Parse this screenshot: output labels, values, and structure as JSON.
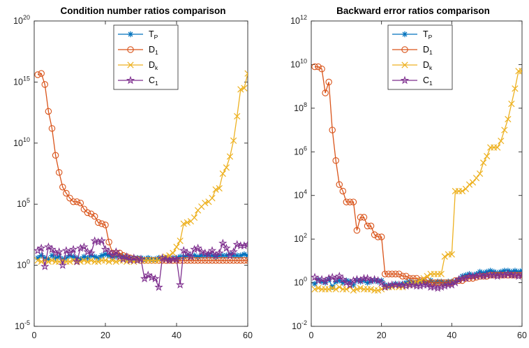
{
  "chart_data": [
    {
      "type": "line",
      "title": "Condition number ratios comparison",
      "xlabel": "",
      "ylabel": "",
      "yscale": "log",
      "xlim": [
        0,
        60
      ],
      "ylim_exp": [
        -5,
        20
      ],
      "x_ticks": [
        "0",
        "20",
        "40",
        "60"
      ],
      "y_tick_base": "10",
      "y_tick_exps": [
        "-5",
        "0",
        "5",
        "10",
        "15",
        "20"
      ],
      "grid": false,
      "legend_position": "top-center",
      "series": [
        {
          "name": "T_P",
          "name_main": "T",
          "name_sub": "P",
          "color": "#0072bd",
          "marker": "asterisk",
          "x": [
            1,
            2,
            3,
            4,
            5,
            6,
            7,
            8,
            9,
            10,
            11,
            12,
            13,
            14,
            15,
            16,
            17,
            18,
            19,
            20,
            21,
            22,
            23,
            24,
            25,
            26,
            27,
            28,
            29,
            30,
            31,
            32,
            33,
            34,
            35,
            36,
            37,
            38,
            39,
            40,
            41,
            42,
            43,
            44,
            45,
            46,
            47,
            48,
            49,
            50,
            51,
            52,
            53,
            54,
            55,
            56,
            57,
            58,
            59,
            60
          ],
          "y_exp": [
            0.6,
            0.8,
            0.6,
            0.5,
            0.8,
            0.6,
            0.7,
            0.5,
            0.6,
            0.8,
            0.7,
            0.6,
            0.5,
            0.7,
            0.6,
            0.8,
            0.7,
            0.6,
            0.8,
            0.9,
            0.8,
            0.7,
            0.7,
            0.8,
            0.7,
            0.6,
            0.6,
            0.5,
            0.6,
            0.6,
            0.5,
            0.6,
            0.5,
            0.5,
            0.6,
            0.6,
            0.6,
            0.5,
            0.6,
            0.6,
            0.7,
            0.7,
            0.8,
            0.8,
            0.8,
            0.7,
            0.8,
            0.8,
            0.8,
            0.8,
            0.7,
            0.8,
            0.8,
            0.8,
            0.9,
            0.8,
            0.8,
            0.8,
            0.9,
            0.8
          ]
        },
        {
          "name": "D_1",
          "name_main": "D",
          "name_sub": "1",
          "color": "#d95319",
          "marker": "circle",
          "x": [
            1,
            2,
            3,
            4,
            5,
            6,
            7,
            8,
            9,
            10,
            11,
            12,
            13,
            14,
            15,
            16,
            17,
            18,
            19,
            20,
            21,
            22,
            23,
            24,
            25,
            26,
            27,
            28,
            29,
            30,
            31,
            32,
            33,
            34,
            35,
            36,
            37,
            38,
            39,
            40,
            41,
            42,
            43,
            44,
            45,
            46,
            47,
            48,
            49,
            50,
            51,
            52,
            53,
            54,
            55,
            56,
            57,
            58,
            59,
            60
          ],
          "y_exp": [
            15.6,
            15.7,
            14.8,
            12.6,
            11.2,
            9.0,
            7.6,
            6.4,
            5.9,
            5.5,
            5.2,
            5.2,
            5.1,
            4.6,
            4.3,
            4.2,
            4.0,
            3.5,
            3.4,
            3.3,
            1.9,
            1.0,
            1.0,
            1.0,
            0.8,
            0.7,
            0.6,
            0.5,
            0.5,
            0.4,
            0.4,
            0.4,
            0.4,
            0.4,
            0.4,
            0.4,
            0.4,
            0.4,
            0.4,
            0.4,
            0.4,
            0.4,
            0.4,
            0.4,
            0.4,
            0.4,
            0.4,
            0.4,
            0.4,
            0.4,
            0.4,
            0.4,
            0.4,
            0.4,
            0.4,
            0.4,
            0.4,
            0.4,
            0.4,
            0.4
          ]
        },
        {
          "name": "D_k",
          "name_main": "D",
          "name_sub": "k",
          "color": "#edb120",
          "marker": "x",
          "x": [
            1,
            2,
            3,
            4,
            5,
            6,
            7,
            8,
            9,
            10,
            11,
            12,
            13,
            14,
            15,
            16,
            17,
            18,
            19,
            20,
            21,
            22,
            23,
            24,
            25,
            26,
            27,
            28,
            29,
            30,
            31,
            32,
            33,
            34,
            35,
            36,
            37,
            38,
            39,
            40,
            41,
            42,
            43,
            44,
            45,
            46,
            47,
            48,
            49,
            50,
            51,
            52,
            53,
            54,
            55,
            56,
            57,
            58,
            59,
            60
          ],
          "y_exp": [
            0.4,
            0.3,
            0.4,
            0.3,
            0.4,
            0.3,
            0.3,
            0.4,
            0.3,
            0.3,
            0.4,
            0.3,
            0.3,
            0.4,
            0.3,
            0.4,
            0.3,
            0.3,
            0.4,
            0.4,
            0.3,
            0.4,
            0.3,
            0.4,
            0.4,
            0.3,
            0.4,
            0.3,
            0.4,
            0.4,
            0.4,
            0.4,
            0.4,
            0.4,
            0.4,
            0.6,
            0.7,
            0.8,
            1.0,
            1.5,
            2.0,
            3.4,
            3.5,
            3.6,
            3.9,
            4.5,
            4.8,
            5.1,
            5.2,
            5.5,
            6.2,
            6.3,
            7.5,
            8.0,
            8.9,
            10.2,
            12.2,
            14.4,
            14.5,
            15.7
          ]
        },
        {
          "name": "C_1",
          "name_main": "C",
          "name_sub": "1",
          "color": "#7e2f8e",
          "marker": "star",
          "x": [
            1,
            2,
            3,
            4,
            5,
            6,
            7,
            8,
            9,
            10,
            11,
            12,
            13,
            14,
            15,
            16,
            17,
            18,
            19,
            20,
            21,
            22,
            23,
            24,
            25,
            26,
            27,
            28,
            29,
            30,
            31,
            32,
            33,
            34,
            35,
            36,
            37,
            38,
            39,
            40,
            41,
            42,
            43,
            44,
            45,
            46,
            47,
            48,
            49,
            50,
            51,
            52,
            53,
            54,
            55,
            56,
            57,
            58,
            59,
            60
          ],
          "y_exp": [
            1.2,
            1.4,
            -0.1,
            1.5,
            1.3,
            1.0,
            1.1,
            0.0,
            1.2,
            1.0,
            1.3,
            0.3,
            1.4,
            1.5,
            1.1,
            1.0,
            2.0,
            1.9,
            2.0,
            1.3,
            1.1,
            0.8,
            1.1,
            0.7,
            0.5,
            0.7,
            0.4,
            0.6,
            0.4,
            0.5,
            -1.1,
            -0.8,
            -1.0,
            -1.1,
            -1.8,
            0.6,
            0.5,
            0.4,
            0.5,
            0.5,
            -1.6,
            1.2,
            1.0,
            0.7,
            1.3,
            1.4,
            1.1,
            1.0,
            0.9,
            1.2,
            0.8,
            1.0,
            1.8,
            1.4,
            0.8,
            1.1,
            1.7,
            1.6,
            1.6,
            1.7
          ]
        }
      ]
    },
    {
      "type": "line",
      "title": "Backward error ratios comparison",
      "xlabel": "",
      "ylabel": "",
      "yscale": "log",
      "xlim": [
        0,
        60
      ],
      "ylim_exp": [
        -2,
        12
      ],
      "x_ticks": [
        "0",
        "20",
        "40",
        "60"
      ],
      "y_tick_base": "10",
      "y_tick_exps": [
        "-2",
        "0",
        "2",
        "4",
        "6",
        "8",
        "10",
        "12"
      ],
      "grid": false,
      "legend_position": "top-center",
      "series": [
        {
          "name": "T_P",
          "name_main": "T",
          "name_sub": "P",
          "color": "#0072bd",
          "marker": "asterisk",
          "x": [
            1,
            2,
            3,
            4,
            5,
            6,
            7,
            8,
            9,
            10,
            11,
            12,
            13,
            14,
            15,
            16,
            17,
            18,
            19,
            20,
            21,
            22,
            23,
            24,
            25,
            26,
            27,
            28,
            29,
            30,
            31,
            32,
            33,
            34,
            35,
            36,
            37,
            38,
            39,
            40,
            41,
            42,
            43,
            44,
            45,
            46,
            47,
            48,
            49,
            50,
            51,
            52,
            53,
            54,
            55,
            56,
            57,
            58,
            59,
            60
          ],
          "y_exp": [
            -0.05,
            0.15,
            0.05,
            0.0,
            0.15,
            -0.2,
            0.05,
            0.1,
            0.0,
            0.1,
            0.05,
            -0.1,
            0.1,
            0.05,
            0.1,
            0.0,
            0.05,
            0.1,
            0.05,
            0.1,
            -0.1,
            -0.15,
            -0.1,
            -0.05,
            -0.1,
            -0.05,
            0.0,
            0.05,
            0.0,
            0.0,
            0.05,
            0.05,
            0.0,
            0.1,
            0.0,
            0.05,
            0.05,
            0.0,
            0.05,
            0.05,
            0.05,
            0.15,
            0.3,
            0.35,
            0.4,
            0.35,
            0.4,
            0.5,
            0.45,
            0.5,
            0.55,
            0.5,
            0.45,
            0.5,
            0.55,
            0.55,
            0.5,
            0.55,
            0.5,
            0.55
          ]
        },
        {
          "name": "D_1",
          "name_main": "D",
          "name_sub": "1",
          "color": "#d95319",
          "marker": "circle",
          "x": [
            1,
            2,
            3,
            4,
            5,
            6,
            7,
            8,
            9,
            10,
            11,
            12,
            13,
            14,
            15,
            16,
            17,
            18,
            19,
            20,
            21,
            22,
            23,
            24,
            25,
            26,
            27,
            28,
            29,
            30,
            31,
            32,
            33,
            34,
            35,
            36,
            37,
            38,
            39,
            40,
            41,
            42,
            43,
            44,
            45,
            46,
            47,
            48,
            49,
            50,
            51,
            52,
            53,
            54,
            55,
            56,
            57,
            58,
            59,
            60
          ],
          "y_exp": [
            9.9,
            9.9,
            9.8,
            8.7,
            9.2,
            7.0,
            5.6,
            4.5,
            4.2,
            3.7,
            3.7,
            3.7,
            2.4,
            3.0,
            3.0,
            2.6,
            2.6,
            2.2,
            2.1,
            2.1,
            0.4,
            0.4,
            0.4,
            0.4,
            0.4,
            0.3,
            0.3,
            0.2,
            0.2,
            0.2,
            0.1,
            0.1,
            0.1,
            0.0,
            0.0,
            0.0,
            0.0,
            0.0,
            0.0,
            0.0,
            0.1,
            0.1,
            0.1,
            0.2,
            0.2,
            0.2,
            0.25,
            0.3,
            0.3,
            0.3,
            0.35,
            0.35,
            0.35,
            0.35,
            0.35,
            0.35,
            0.35,
            0.35,
            0.35,
            0.35
          ]
        },
        {
          "name": "D_k",
          "name_main": "D",
          "name_sub": "k",
          "color": "#edb120",
          "marker": "x",
          "x": [
            1,
            2,
            3,
            4,
            5,
            6,
            7,
            8,
            9,
            10,
            11,
            12,
            13,
            14,
            15,
            16,
            17,
            18,
            19,
            20,
            21,
            22,
            23,
            24,
            25,
            26,
            27,
            28,
            29,
            30,
            31,
            32,
            33,
            34,
            35,
            36,
            37,
            38,
            39,
            40,
            41,
            42,
            43,
            44,
            45,
            46,
            47,
            48,
            49,
            50,
            51,
            52,
            53,
            54,
            55,
            56,
            57,
            58,
            59,
            60
          ],
          "y_exp": [
            -0.3,
            -0.25,
            -0.3,
            -0.3,
            -0.3,
            -0.25,
            -0.3,
            -0.2,
            -0.3,
            -0.3,
            -0.2,
            -0.35,
            -0.3,
            -0.25,
            -0.3,
            -0.3,
            -0.3,
            -0.35,
            -0.35,
            -0.3,
            -0.2,
            -0.2,
            -0.2,
            -0.15,
            -0.2,
            -0.2,
            -0.1,
            -0.1,
            -0.05,
            0.0,
            0.1,
            0.2,
            0.3,
            0.4,
            0.4,
            0.4,
            0.4,
            1.2,
            1.3,
            1.3,
            4.2,
            4.2,
            4.2,
            4.3,
            4.5,
            4.6,
            4.8,
            5.0,
            5.5,
            5.8,
            6.2,
            6.2,
            6.2,
            6.5,
            7.0,
            7.5,
            8.2,
            8.9,
            9.7,
            9.7
          ]
        },
        {
          "name": "C_1",
          "name_main": "C",
          "name_sub": "1",
          "color": "#7e2f8e",
          "marker": "star",
          "x": [
            1,
            2,
            3,
            4,
            5,
            6,
            7,
            8,
            9,
            10,
            11,
            12,
            13,
            14,
            15,
            16,
            17,
            18,
            19,
            20,
            21,
            22,
            23,
            24,
            25,
            26,
            27,
            28,
            29,
            30,
            31,
            32,
            33,
            34,
            35,
            36,
            37,
            38,
            39,
            40,
            41,
            42,
            43,
            44,
            45,
            46,
            47,
            48,
            49,
            50,
            51,
            52,
            53,
            54,
            55,
            56,
            57,
            58,
            59,
            60
          ],
          "y_exp": [
            0.25,
            0.1,
            0.15,
            0.05,
            0.2,
            0.25,
            0.15,
            0.3,
            0.15,
            0.0,
            -0.1,
            0.1,
            0.15,
            0.1,
            0.2,
            0.2,
            0.1,
            0.15,
            0.1,
            0.0,
            -0.2,
            -0.15,
            -0.1,
            -0.1,
            -0.1,
            -0.1,
            -0.15,
            -0.1,
            -0.1,
            -0.15,
            -0.15,
            -0.1,
            -0.1,
            -0.2,
            -0.2,
            -0.25,
            -0.2,
            -0.15,
            -0.1,
            -0.1,
            0.0,
            0.15,
            0.2,
            0.2,
            0.3,
            0.3,
            0.3,
            0.35,
            0.3,
            0.35,
            0.35,
            0.35,
            0.3,
            0.35,
            0.35,
            0.4,
            0.35,
            0.35,
            0.3,
            0.35
          ]
        }
      ]
    }
  ]
}
